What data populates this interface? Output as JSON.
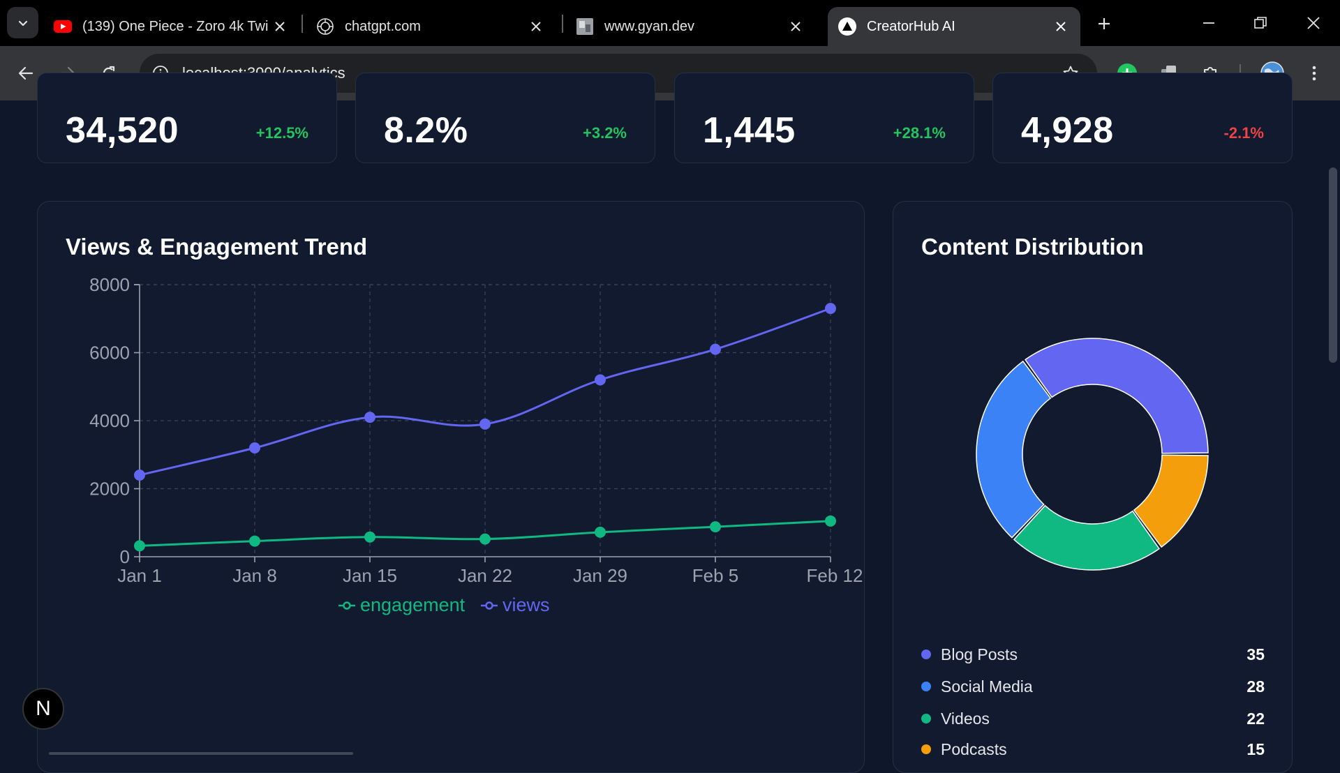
{
  "browser": {
    "tabs": [
      {
        "title": "(139) One Piece - Zoro 4k Twi",
        "icon": "youtube-icon"
      },
      {
        "title": "chatgpt.com",
        "icon": "openai-icon"
      },
      {
        "title": "www.gyan.dev",
        "icon": "site-thumbnail-icon"
      },
      {
        "title": "CreatorHub AI",
        "icon": "triangle-logo-icon",
        "active": true
      }
    ],
    "url": "localhost:3000/analytics"
  },
  "stats": [
    {
      "value": "34,520",
      "change": "+12.5%",
      "trend": "up"
    },
    {
      "value": "8.2%",
      "change": "+3.2%",
      "trend": "up"
    },
    {
      "value": "1,445",
      "change": "+28.1%",
      "trend": "up"
    },
    {
      "value": "4,928",
      "change": "-2.1%",
      "trend": "down"
    }
  ],
  "trend_panel": {
    "title": "Views & Engagement Trend"
  },
  "distribution_panel": {
    "title": "Content Distribution",
    "items": [
      {
        "label": "Blog Posts",
        "count": "35",
        "color": "#6366f1"
      },
      {
        "label": "Social Media",
        "count": "28",
        "color": "#3b82f6"
      },
      {
        "label": "Videos",
        "count": "22",
        "color": "#10b981"
      },
      {
        "label": "Podcasts",
        "count": "15",
        "color": "#f59e0b"
      }
    ]
  },
  "chart_data": [
    {
      "type": "line",
      "x": [
        "Jan 1",
        "Jan 8",
        "Jan 15",
        "Jan 22",
        "Jan 29",
        "Feb 5",
        "Feb 12"
      ],
      "series": [
        {
          "name": "views",
          "color": "#6366f1",
          "values": [
            2400,
            3200,
            4100,
            3900,
            5200,
            6100,
            7300
          ]
        },
        {
          "name": "engagement",
          "color": "#10b981",
          "values": [
            320,
            460,
            580,
            520,
            720,
            880,
            1050
          ]
        }
      ],
      "legend_order": [
        "engagement",
        "views"
      ],
      "yticks": [
        "0",
        "2000",
        "4000",
        "6000",
        "8000"
      ],
      "ylim": [
        0,
        8000
      ],
      "grid": true,
      "legend_position": "bottom"
    },
    {
      "type": "pie",
      "donut": true,
      "categories": [
        "Blog Posts",
        "Social Media",
        "Videos",
        "Podcasts"
      ],
      "values": [
        35,
        28,
        22,
        15
      ],
      "colors": [
        "#6366f1",
        "#3b82f6",
        "#10b981",
        "#f59e0b"
      ]
    }
  ],
  "badge": {
    "letter": "N"
  }
}
